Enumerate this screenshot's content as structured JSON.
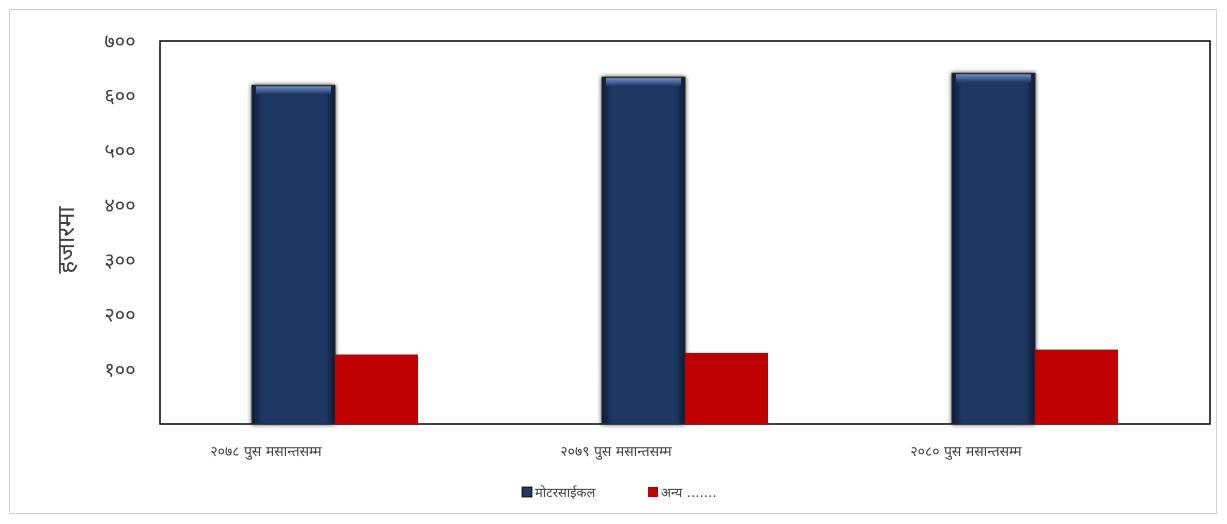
{
  "chart_data": {
    "type": "bar",
    "title": "",
    "xlabel": "",
    "ylabel": "हजारमा",
    "ylim": [
      0,
      700
    ],
    "yticks": [
      {
        "value": 100,
        "label": "१००"
      },
      {
        "value": 200,
        "label": "२००"
      },
      {
        "value": 300,
        "label": "३००"
      },
      {
        "value": 400,
        "label": "४००"
      },
      {
        "value": 500,
        "label": "५००"
      },
      {
        "value": 600,
        "label": "६००"
      },
      {
        "value": 700,
        "label": "७००"
      }
    ],
    "grid": false,
    "legend_position": "bottom",
    "categories": [
      "२०७८ पुस मसान्तसम्म",
      "२०७९ पुस मसान्तसम्म",
      "२०८० पुस मसान्तसम्म"
    ],
    "series": [
      {
        "name": "मोटरसाईकल",
        "color": "#1f3864",
        "values": [
          619,
          634,
          641
        ]
      },
      {
        "name": "अन्य …….",
        "color": "#c00000",
        "values": [
          127,
          130,
          136
        ]
      }
    ]
  }
}
